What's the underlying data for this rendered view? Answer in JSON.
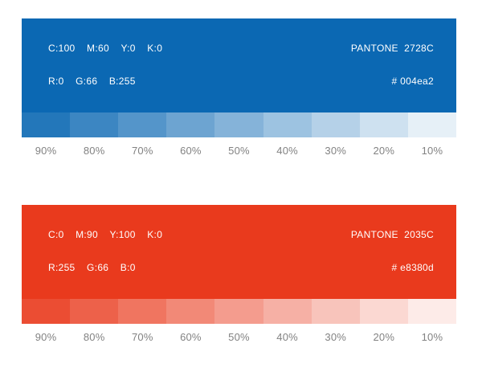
{
  "page": {
    "background": "#ffffff",
    "tint_label_color": "#828282"
  },
  "panels": [
    {
      "id": "blue",
      "color": "#0b68b3",
      "text_color": "#ffffff",
      "cmyk": [
        "C:100",
        "M:60",
        "Y:0",
        "K:0"
      ],
      "rgb": [
        "R:0",
        "G:66",
        "B:255"
      ],
      "pantone": "PANTONE  2728C",
      "hex_label": "# 004ea2",
      "tints": [
        "90%",
        "80%",
        "70%",
        "60%",
        "50%",
        "40%",
        "30%",
        "20%",
        "10%"
      ]
    },
    {
      "id": "red",
      "color": "#e93a1d",
      "text_color": "#ffffff",
      "cmyk": [
        "C:0",
        "M:90",
        "Y:100",
        "K:0"
      ],
      "rgb": [
        "R:255",
        "G:66",
        "B:0"
      ],
      "pantone": "PANTONE  2035C",
      "hex_label": "# e8380d",
      "tints": [
        "90%",
        "80%",
        "70%",
        "60%",
        "50%",
        "40%",
        "30%",
        "20%",
        "10%"
      ]
    }
  ]
}
